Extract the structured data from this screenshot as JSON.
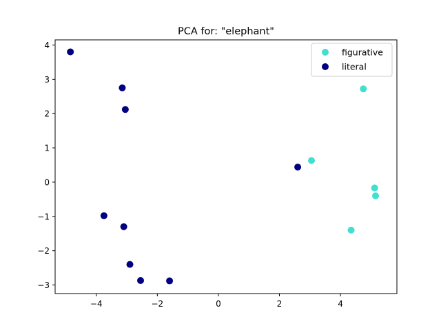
{
  "chart_data": {
    "type": "scatter",
    "title": "PCA for: \"elephant\"",
    "xlabel": "",
    "ylabel": "",
    "xlim": [
      -5.35,
      5.85
    ],
    "ylim": [
      -3.25,
      4.15
    ],
    "xticks": [
      -4,
      -2,
      0,
      2,
      4
    ],
    "yticks": [
      -3,
      -2,
      -1,
      0,
      1,
      2,
      3,
      4
    ],
    "xtick_labels": [
      "−4",
      "−2",
      "0",
      "2",
      "4"
    ],
    "ytick_labels": [
      "−3",
      "−2",
      "−1",
      "0",
      "1",
      "2",
      "3",
      "4"
    ],
    "grid": false,
    "legend_position": "top-right",
    "series": [
      {
        "name": "figurative",
        "color": "#40e0d0",
        "points": [
          {
            "x": 4.75,
            "y": 2.72
          },
          {
            "x": 3.05,
            "y": 0.63
          },
          {
            "x": 5.12,
            "y": -0.17
          },
          {
            "x": 5.15,
            "y": -0.4
          },
          {
            "x": 4.35,
            "y": -1.4
          }
        ]
      },
      {
        "name": "literal",
        "color": "#000080",
        "points": [
          {
            "x": -4.85,
            "y": 3.8
          },
          {
            "x": -3.15,
            "y": 2.75
          },
          {
            "x": -3.05,
            "y": 2.12
          },
          {
            "x": 2.6,
            "y": 0.44
          },
          {
            "x": -3.75,
            "y": -0.98
          },
          {
            "x": -3.1,
            "y": -1.3
          },
          {
            "x": -2.9,
            "y": -2.4
          },
          {
            "x": -2.55,
            "y": -2.87
          },
          {
            "x": -1.6,
            "y": -2.88
          }
        ]
      }
    ]
  }
}
